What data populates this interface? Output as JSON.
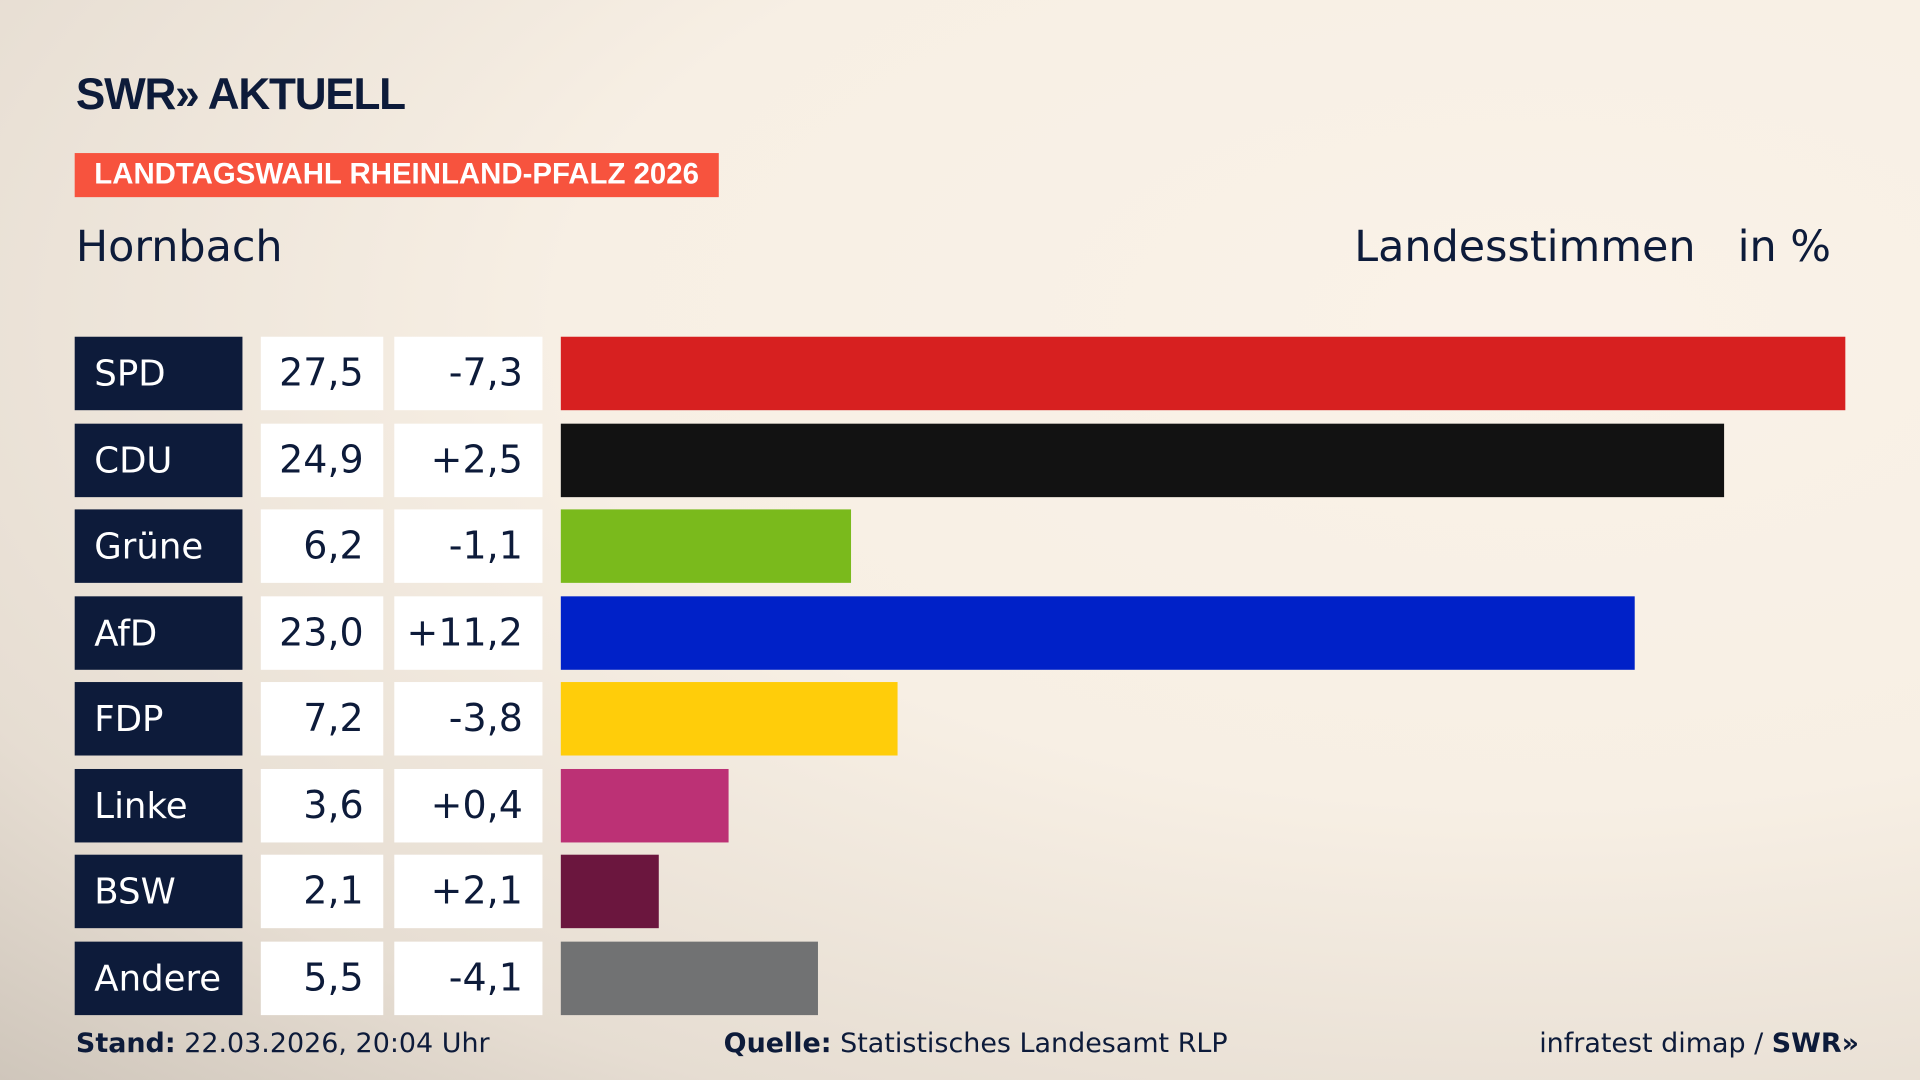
{
  "header": {
    "logo": "SWR» AKTUELL",
    "tag": "LANDTAGSWAHL RHEINLAND-PFALZ 2026",
    "place": "Hornbach",
    "vote_type": "Landesstimmen",
    "unit": "in %"
  },
  "chart_data": {
    "type": "bar",
    "orientation": "horizontal",
    "categories": [
      "SPD",
      "CDU",
      "Grüne",
      "AfD",
      "FDP",
      "Linke",
      "BSW",
      "Andere"
    ],
    "values": [
      27.5,
      24.9,
      6.2,
      23.0,
      7.2,
      3.6,
      2.1,
      5.5
    ],
    "value_labels": [
      "27,5",
      "24,9",
      "6,2",
      "23,0",
      "7,2",
      "3,6",
      "2,1",
      "5,5"
    ],
    "diff_labels": [
      "-7,3",
      "+2,5",
      "-1,1",
      "+11,2",
      "-3,8",
      "+0,4",
      "+2,1",
      "-4,1"
    ],
    "colors": [
      "#d72020",
      "#121212",
      "#7aba1c",
      "#0021c8",
      "#ffcd0a",
      "#bc3175",
      "#6b163e",
      "#717273"
    ],
    "xlim": [
      0,
      27.5
    ]
  },
  "footer": {
    "stand_label": "Stand:",
    "stand": "22.03.2026, 20:04 Uhr",
    "source_label": "Quelle:",
    "source": "Statistisches Landesamt RLP",
    "credit": "infratest dimap / ",
    "credit_logo": "SWR»"
  }
}
